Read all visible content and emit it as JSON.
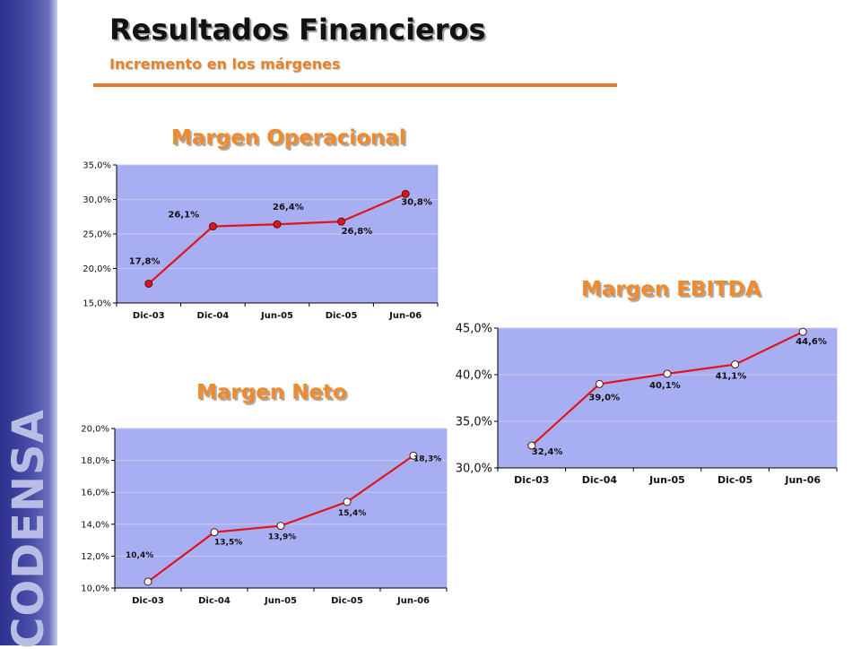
{
  "slide": {
    "title": "Resultados Financieros",
    "subtitle": "Incremento en los márgenes",
    "logo_text": "CODENSA"
  },
  "colors": {
    "accent_orange": "#e8782c",
    "plot_bg": "#a8aef2",
    "line": "#e0141c",
    "sidebar": "#3b3f9c"
  },
  "chart_data": [
    {
      "id": "margen-operacional",
      "type": "line",
      "title": "Margen Operacional",
      "categories": [
        "Dic-03",
        "Dic-04",
        "Jun-05",
        "Dic-05",
        "Jun-06"
      ],
      "series": [
        {
          "values": [
            17.8,
            26.1,
            26.4,
            26.8,
            30.8
          ]
        }
      ],
      "data_labels": [
        "17,8%",
        "26,1%",
        "26,4%",
        "26,8%",
        "30,8%"
      ],
      "ylim": [
        15,
        35
      ],
      "yticks": [
        15,
        20,
        25,
        30,
        35
      ],
      "ytick_labels": [
        "15,0%",
        "20,0%",
        "25,0%",
        "30,0%",
        "35,0%"
      ],
      "grid": true,
      "marker_fill": "#e0141c"
    },
    {
      "id": "margen-ebitda",
      "type": "line",
      "title": "Margen EBITDA",
      "categories": [
        "Dic-03",
        "Dic-04",
        "Jun-05",
        "Dic-05",
        "Jun-06"
      ],
      "series": [
        {
          "values": [
            32.4,
            39.0,
            40.1,
            41.1,
            44.6
          ]
        }
      ],
      "data_labels": [
        "32,4%",
        "39,0%",
        "40,1%",
        "41,1%",
        "44,6%"
      ],
      "ylim": [
        30,
        45
      ],
      "yticks": [
        30,
        35,
        40,
        45
      ],
      "ytick_labels": [
        "30,0%",
        "35,0%",
        "40,0%",
        "45,0%"
      ],
      "grid": true,
      "marker_fill": "#ffffff"
    },
    {
      "id": "margen-neto",
      "type": "line",
      "title": "Margen Neto",
      "categories": [
        "Dic-03",
        "Dic-04",
        "Jun-05",
        "Dic-05",
        "Jun-06"
      ],
      "series": [
        {
          "values": [
            10.4,
            13.5,
            13.9,
            15.4,
            18.3
          ]
        }
      ],
      "data_labels": [
        "10,4%",
        "13,5%",
        "13,9%",
        "15,4%",
        "18,3%"
      ],
      "ylim": [
        10,
        20
      ],
      "yticks": [
        10,
        12,
        14,
        16,
        18,
        20
      ],
      "ytick_labels": [
        "10,0%",
        "12,0%",
        "14,0%",
        "16,0%",
        "18,0%",
        "20,0%"
      ],
      "grid": true,
      "marker_fill": "#ffffff"
    }
  ]
}
